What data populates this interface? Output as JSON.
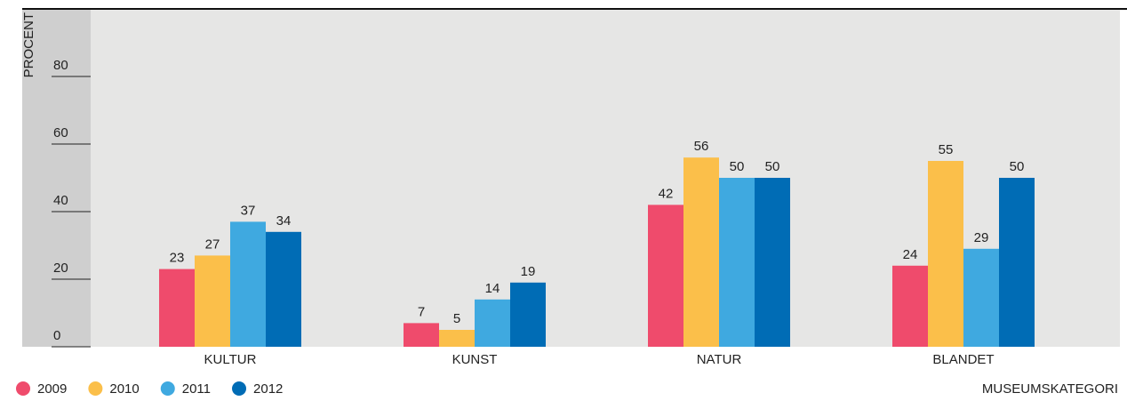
{
  "chart_data": {
    "type": "bar",
    "y_label": "PROCENT",
    "x_label": "MUSEUMSKATEGORI",
    "categories": [
      "KULTUR",
      "KUNST",
      "NATUR",
      "BLANDET"
    ],
    "series": [
      {
        "name": "2009",
        "color": "#ef4b6c",
        "values": [
          23,
          7,
          42,
          24
        ]
      },
      {
        "name": "2010",
        "color": "#fbbf4a",
        "values": [
          27,
          5,
          56,
          55
        ]
      },
      {
        "name": "2011",
        "color": "#3fa9e0",
        "values": [
          37,
          14,
          50,
          29
        ]
      },
      {
        "name": "2012",
        "color": "#006cb5",
        "values": [
          34,
          19,
          50,
          50
        ]
      }
    ],
    "ylim": [
      0,
      100
    ],
    "yticks": [
      0,
      20,
      40,
      60,
      80
    ],
    "legend": "bottom-left"
  }
}
